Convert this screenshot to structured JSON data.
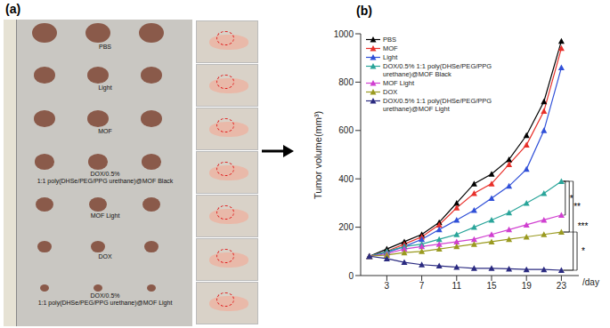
{
  "panel_a": {
    "label": "(a)",
    "groups": [
      "PBS",
      "Light",
      "MOF",
      "DOX/0.5%\n1:1 poly(DHSe/PEG/PPG urethane)@MOF Black",
      "MOF  Light",
      "DOX",
      "DOX/0.5%\n1:1 poly(DHSe/PEG/PPG urethane)@MOF Light"
    ]
  },
  "chart_data": {
    "panel_label": "(b)",
    "type": "line",
    "y_label": "Tumor volume(mm³)",
    "x_label": "/day",
    "x": [
      1,
      3,
      5,
      7,
      9,
      11,
      13,
      15,
      17,
      19,
      21,
      23
    ],
    "xlim": [
      0,
      25
    ],
    "xticks": [
      3,
      7,
      11,
      15,
      19,
      23
    ],
    "ylim": [
      0,
      1000
    ],
    "yticks": [
      0,
      200,
      400,
      600,
      800,
      1000
    ],
    "legend": "upper left",
    "marker": "triangle",
    "series": [
      {
        "name": "PBS",
        "color": "#000000",
        "values": [
          80,
          110,
          140,
          170,
          220,
          300,
          380,
          420,
          480,
          580,
          720,
          970
        ]
      },
      {
        "name": "MOF",
        "color": "#e8302a",
        "values": [
          80,
          100,
          130,
          160,
          210,
          280,
          340,
          380,
          460,
          540,
          680,
          940
        ]
      },
      {
        "name": "Light",
        "color": "#3050d8",
        "values": [
          80,
          95,
          120,
          150,
          190,
          230,
          270,
          320,
          370,
          440,
          600,
          860
        ]
      },
      {
        "name": "DOX/0.5%  1:1 poly(DHSe/PEG/PPG urethane)@MOF Black",
        "color": "#2aa59a",
        "values": [
          80,
          100,
          120,
          130,
          150,
          170,
          200,
          230,
          260,
          300,
          340,
          390
        ]
      },
      {
        "name": "MOF  Light",
        "color": "#d040d0",
        "values": [
          80,
          90,
          110,
          120,
          130,
          140,
          150,
          170,
          190,
          210,
          230,
          250
        ]
      },
      {
        "name": "DOX",
        "color": "#9a9a20",
        "values": [
          80,
          85,
          95,
          100,
          110,
          120,
          130,
          140,
          150,
          160,
          170,
          180
        ]
      },
      {
        "name": "DOX/0.5%  1:1 poly(DHSe/PEG/PPG urethane)@MOF Light",
        "color": "#2a2a80",
        "values": [
          80,
          70,
          55,
          45,
          40,
          35,
          30,
          30,
          28,
          25,
          25,
          22
        ]
      }
    ],
    "annotations": [
      {
        "text": "*",
        "between": [
          "DOX/0.5%  1:1 poly(DHSe/PEG/PPG urethane)@MOF Black",
          "MOF  Light"
        ]
      },
      {
        "text": "**",
        "between": [
          "DOX/0.5%  1:1 poly(DHSe/PEG/PPG urethane)@MOF Black",
          "DOX"
        ]
      },
      {
        "text": "***",
        "between": [
          "DOX/0.5%  1:1 poly(DHSe/PEG/PPG urethane)@MOF Black",
          "DOX/0.5%  1:1 poly(DHSe/PEG/PPG urethane)@MOF Light"
        ]
      },
      {
        "text": "*",
        "between": [
          "DOX",
          "DOX/0.5%  1:1 poly(DHSe/PEG/PPG urethane)@MOF Light"
        ]
      }
    ]
  }
}
